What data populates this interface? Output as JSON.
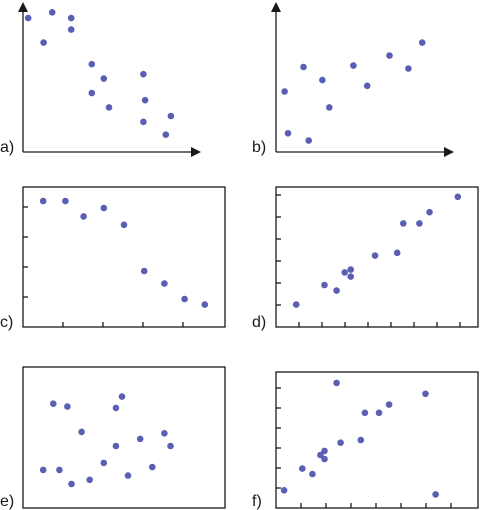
{
  "dot_color": "#5b5fb3",
  "axis_color": "#1a1a1a",
  "chart_data": [
    {
      "type": "scatter",
      "label": "a)",
      "frame": "arrows",
      "ticks": "none",
      "xlim": [
        0,
        10
      ],
      "ylim": [
        0,
        10
      ],
      "points": [
        [
          0.3,
          9.3
        ],
        [
          1.2,
          7.6
        ],
        [
          1.7,
          9.7
        ],
        [
          2.8,
          9.3
        ],
        [
          2.8,
          8.5
        ],
        [
          4.0,
          6.1
        ],
        [
          4.0,
          4.1
        ],
        [
          4.7,
          5.1
        ],
        [
          5.0,
          3.1
        ],
        [
          7.0,
          5.4
        ],
        [
          7.1,
          3.6
        ],
        [
          7.0,
          2.1
        ],
        [
          8.6,
          2.5
        ],
        [
          8.3,
          1.2
        ]
      ]
    },
    {
      "type": "scatter",
      "label": "b)",
      "frame": "arrows",
      "ticks": "none",
      "xlim": [
        0,
        10
      ],
      "ylim": [
        0,
        10
      ],
      "points": [
        [
          0.5,
          4.2
        ],
        [
          0.7,
          1.3
        ],
        [
          1.6,
          5.9
        ],
        [
          1.9,
          0.8
        ],
        [
          2.7,
          5.0
        ],
        [
          3.1,
          3.1
        ],
        [
          4.5,
          6.0
        ],
        [
          5.3,
          4.6
        ],
        [
          6.6,
          6.7
        ],
        [
          7.7,
          5.8
        ],
        [
          8.5,
          7.6
        ]
      ]
    },
    {
      "type": "scatter",
      "label": "c)",
      "frame": "box",
      "ticks": "both",
      "xlim": [
        0,
        10
      ],
      "ylim": [
        0,
        10
      ],
      "points": [
        [
          1.0,
          9.0
        ],
        [
          2.1,
          9.0
        ],
        [
          3.0,
          7.9
        ],
        [
          4.0,
          8.5
        ],
        [
          5.0,
          7.3
        ],
        [
          6.0,
          4.0
        ],
        [
          7.0,
          3.1
        ],
        [
          8.0,
          2.0
        ],
        [
          9.0,
          1.6
        ]
      ]
    },
    {
      "type": "scatter",
      "label": "d)",
      "frame": "box",
      "ticks": "both",
      "xlim": [
        0,
        10
      ],
      "ylim": [
        0,
        10
      ],
      "points": [
        [
          1.0,
          1.6
        ],
        [
          2.4,
          3.0
        ],
        [
          3.0,
          2.6
        ],
        [
          3.4,
          3.9
        ],
        [
          3.7,
          4.1
        ],
        [
          3.7,
          3.6
        ],
        [
          4.9,
          5.1
        ],
        [
          6.0,
          5.3
        ],
        [
          6.3,
          7.4
        ],
        [
          7.1,
          7.4
        ],
        [
          7.6,
          8.2
        ],
        [
          9.0,
          9.3
        ]
      ]
    },
    {
      "type": "scatter",
      "label": "e)",
      "frame": "box",
      "ticks": "none",
      "xlim": [
        0,
        10
      ],
      "ylim": [
        0,
        10
      ],
      "points": [
        [
          1.0,
          2.7
        ],
        [
          1.5,
          7.4
        ],
        [
          1.8,
          2.7
        ],
        [
          2.2,
          7.2
        ],
        [
          2.4,
          1.7
        ],
        [
          2.9,
          5.4
        ],
        [
          3.3,
          2.0
        ],
        [
          4.0,
          3.2
        ],
        [
          4.6,
          4.4
        ],
        [
          4.6,
          7.1
        ],
        [
          4.9,
          7.9
        ],
        [
          5.2,
          2.3
        ],
        [
          5.8,
          4.9
        ],
        [
          6.4,
          2.9
        ],
        [
          7.0,
          5.3
        ],
        [
          7.3,
          4.4
        ]
      ]
    },
    {
      "type": "scatter",
      "label": "f)",
      "frame": "box",
      "ticks": "both",
      "xlim": [
        0,
        10
      ],
      "ylim": [
        0,
        10
      ],
      "points": [
        [
          0.4,
          1.3
        ],
        [
          1.3,
          2.9
        ],
        [
          1.8,
          2.5
        ],
        [
          2.2,
          3.9
        ],
        [
          2.4,
          4.2
        ],
        [
          2.4,
          3.6
        ],
        [
          3.0,
          9.2
        ],
        [
          3.2,
          4.8
        ],
        [
          4.2,
          5.0
        ],
        [
          4.4,
          7.0
        ],
        [
          5.1,
          7.0
        ],
        [
          5.6,
          7.6
        ],
        [
          7.4,
          8.4
        ],
        [
          7.9,
          1.0
        ]
      ]
    }
  ]
}
